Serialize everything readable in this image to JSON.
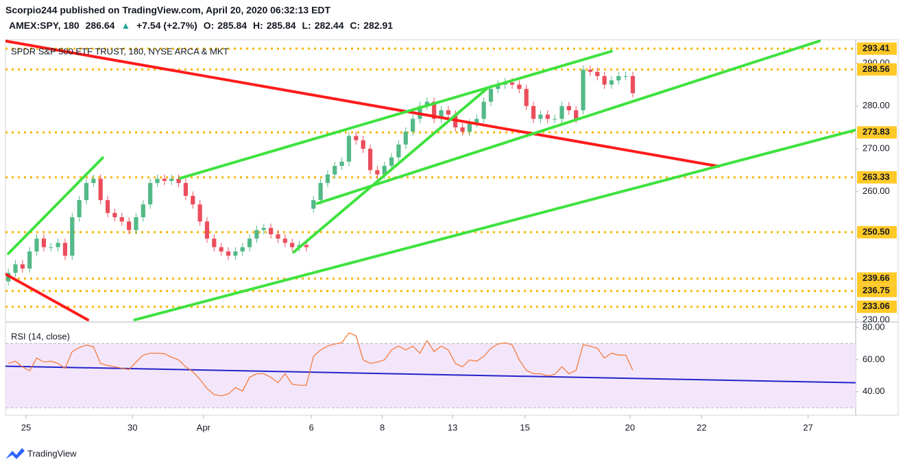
{
  "header": {
    "published": "Scorpio244 published on TradingView.com, April 20, 2020 06:32:13 EDT",
    "symbol": "AMEX:SPY, 180",
    "last": 286.64,
    "arrow": "▲",
    "change": "+7.54 (+2.7%)",
    "ohlc": [
      {
        "label": "O:",
        "value": 285.84
      },
      {
        "label": "H:",
        "value": 285.84
      },
      {
        "label": "L:",
        "value": 282.44
      },
      {
        "label": "C:",
        "value": 282.91
      }
    ]
  },
  "footer": {
    "brand": "TradingView"
  },
  "chart_data": [
    {
      "type": "candlestick",
      "title": "SPDR S&P 500 ETF TRUST, 180, NYSE ARCA & MKT",
      "up_color": "#53b987",
      "down_color": "#eb4d5c",
      "open": [
        239,
        241,
        243,
        242,
        246,
        249,
        247,
        247,
        248,
        245,
        254,
        258,
        262,
        263,
        258,
        255,
        254,
        253,
        251,
        254,
        257,
        262,
        263,
        262.5,
        263,
        262,
        259,
        257,
        253,
        249,
        247,
        246,
        245,
        246,
        247,
        249,
        251,
        251.5,
        250,
        249,
        248,
        247,
        247.5,
        256,
        258,
        262,
        264,
        266,
        267,
        273,
        272,
        270,
        265,
        264,
        266,
        268,
        271,
        274,
        277,
        280,
        281,
        277,
        279,
        278,
        275,
        274,
        276,
        277,
        281,
        284,
        285,
        285.5,
        285,
        284,
        280,
        277,
        278,
        277,
        277,
        280,
        279,
        279,
        288.5,
        288,
        287,
        285,
        286,
        287,
        287
      ],
      "high": [
        242,
        244,
        244,
        247,
        250,
        250,
        248,
        249,
        249,
        255,
        259,
        263,
        264,
        264,
        259,
        256,
        255,
        254,
        255,
        258,
        263,
        264,
        264,
        264,
        264,
        263,
        260,
        258,
        254,
        250,
        248,
        247,
        247,
        248,
        250,
        252,
        252.5,
        252.5,
        251,
        250,
        249,
        248.5,
        248.5,
        259,
        263,
        265,
        267,
        268,
        274,
        274,
        273,
        271,
        266,
        267,
        269,
        272,
        275,
        278,
        281,
        282,
        282,
        280,
        280,
        279,
        276,
        277,
        278,
        282,
        285,
        286,
        286.5,
        286.5,
        286,
        285,
        281,
        279,
        279,
        278,
        281,
        281,
        280,
        289.5,
        289.5,
        289,
        288,
        287,
        288,
        288,
        288
      ],
      "low": [
        238,
        240,
        241,
        241,
        245,
        246,
        246,
        246,
        244,
        244,
        253,
        257,
        261,
        257,
        254,
        253,
        252,
        250,
        250,
        253,
        256,
        261,
        261.5,
        261.5,
        261,
        258,
        256,
        252,
        248,
        246,
        245,
        244,
        244,
        245,
        246,
        248,
        250,
        249,
        248,
        247,
        246,
        246,
        246,
        255,
        257,
        261,
        263,
        265,
        266,
        271,
        269,
        264,
        263,
        263,
        265,
        267,
        270,
        273,
        276,
        279,
        276,
        276,
        277,
        274,
        273,
        273,
        275,
        276,
        280,
        283,
        284,
        284,
        283,
        279,
        276,
        276,
        276,
        276,
        276,
        278,
        276,
        278,
        287,
        286,
        284,
        284,
        285,
        286,
        282
      ],
      "close": [
        241,
        243,
        242,
        246,
        249,
        247,
        247,
        248,
        245,
        254,
        258,
        262,
        263,
        258,
        255,
        254,
        253,
        251,
        254,
        257,
        262,
        263,
        262.5,
        263,
        262,
        259,
        257,
        253,
        249,
        247,
        246,
        245,
        246,
        247,
        249,
        251,
        251.5,
        250,
        249,
        248,
        247,
        247.5,
        247,
        258,
        262,
        264,
        266,
        267,
        273,
        272,
        270,
        265,
        264,
        266,
        268,
        271,
        274,
        277,
        280,
        281,
        277,
        279,
        278,
        275,
        274,
        276,
        277,
        281,
        284,
        285,
        285.5,
        285,
        284,
        280,
        277,
        278,
        277,
        277,
        280,
        279,
        277,
        288.5,
        288,
        287,
        285,
        286,
        287,
        287,
        283
      ],
      "xlim": [
        -0.4,
        119.4
      ],
      "xticks": [
        {
          "value": 2.5,
          "label": "25"
        },
        {
          "value": 17.5,
          "label": "30"
        },
        {
          "value": 27.5,
          "label": "Apr"
        },
        {
          "value": 42.7,
          "label": "6"
        },
        {
          "value": 52.7,
          "label": "8"
        },
        {
          "value": 62.6,
          "label": "13"
        },
        {
          "value": 72.8,
          "label": "15"
        },
        {
          "value": 87.6,
          "label": "20"
        },
        {
          "value": 97.7,
          "label": "22"
        },
        {
          "value": 112.7,
          "label": "27"
        }
      ],
      "ylim": [
        229.5,
        295.5
      ],
      "yticks": [
        {
          "value": 230,
          "label": "230.00"
        },
        {
          "value": 260,
          "label": "260.00"
        },
        {
          "value": 270,
          "label": "270.00"
        },
        {
          "value": 280,
          "label": "280.00"
        },
        {
          "value": 290,
          "label": "290.00"
        }
      ],
      "levels": [
        293.41,
        288.56,
        273.83,
        263.33,
        {
          "value": 250.5,
          "label": "250.50"
        },
        239.66,
        236.75,
        233.06
      ],
      "level_color": "#f5b700",
      "trendlines": [
        {
          "color": "#ff1a1a",
          "x": [
            -0.4,
            100.1
          ],
          "y": [
            295.2,
            265.9
          ]
        },
        {
          "color": "#ff1a1a",
          "x": [
            -0.4,
            11.2
          ],
          "y": [
            240.7,
            230
          ]
        },
        {
          "color": "#3ee23e",
          "x": [
            0,
            13.3
          ],
          "y": [
            245.5,
            267.9
          ]
        },
        {
          "color": "#3ee23e",
          "x": [
            24.2,
            85
          ],
          "y": [
            263.1,
            292.8
          ]
        },
        {
          "color": "#3ee23e",
          "x": [
            40.2,
            67.6
          ],
          "y": [
            245.8,
            284.3
          ]
        },
        {
          "color": "#3ee23e",
          "x": [
            43.5,
            114.3
          ],
          "y": [
            257.2,
            295.2
          ]
        },
        {
          "color": "#3ee23e",
          "x": [
            17.8,
            119.4
          ],
          "y": [
            230,
            274.4
          ]
        }
      ]
    },
    {
      "type": "line",
      "title": "RSI (14, close)",
      "color": "#f47c3c",
      "values": [
        57.6,
        59,
        55.5,
        53,
        61,
        58.5,
        59,
        57.6,
        54.6,
        65,
        67.5,
        69,
        68,
        57.6,
        56.3,
        55.5,
        54.6,
        53.8,
        58.5,
        62.8,
        64,
        64,
        63.7,
        61.5,
        59.8,
        55.5,
        52.5,
        47.7,
        42,
        38.3,
        37.4,
        38.6,
        42.6,
        40.4,
        49,
        51.2,
        51.2,
        49,
        45.6,
        51.2,
        44.7,
        44,
        44,
        62,
        66,
        68.4,
        69.7,
        70.5,
        76.6,
        74.8,
        59.8,
        57.6,
        58.5,
        59.8,
        66,
        68.4,
        66,
        68.4,
        64,
        71.8,
        65,
        68.4,
        66,
        57.6,
        55.5,
        59.8,
        59,
        62,
        67,
        69.7,
        70.5,
        69.2,
        59.8,
        53.3,
        51.2,
        51.2,
        49.9,
        50.8,
        55.5,
        51.2,
        53.3,
        69.2,
        68.4,
        67,
        61,
        64,
        62.8,
        62.8,
        53.3
      ],
      "ylim": [
        25.4,
        83.4
      ],
      "yticks": [
        {
          "value": 40,
          "label": "40.00"
        },
        {
          "value": 60,
          "label": "60.00"
        },
        {
          "value": 80,
          "label": "80.00"
        }
      ],
      "band": [
        30,
        70
      ],
      "band_color": "#f3e6fb",
      "trendlines": [
        {
          "color": "#2323c8",
          "x": [
            -0.4,
            119.4
          ],
          "y": [
            55.9,
            45.6
          ]
        }
      ]
    }
  ]
}
